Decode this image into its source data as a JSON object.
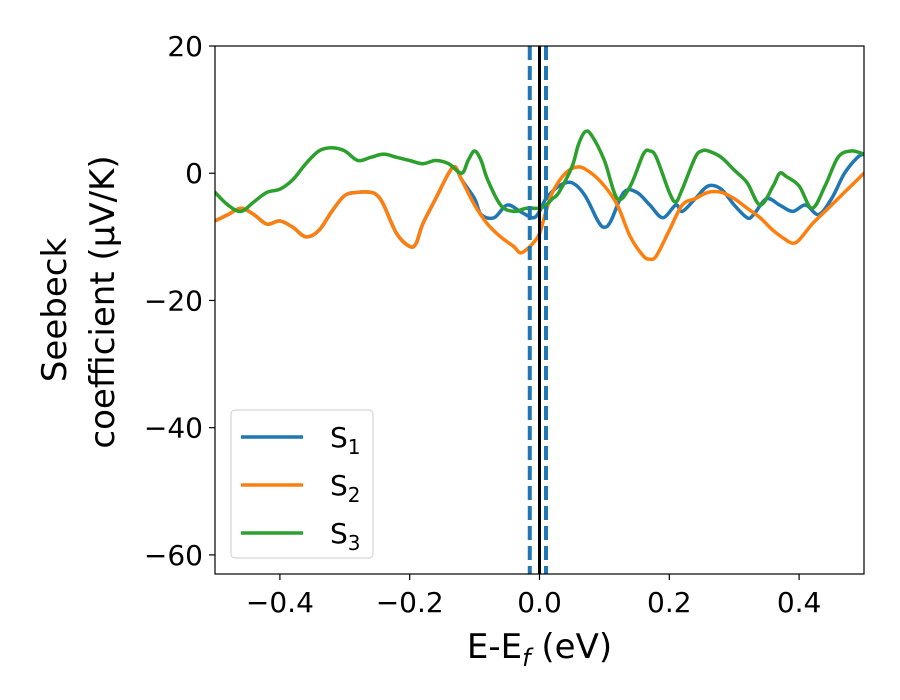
{
  "chart_data": {
    "type": "line",
    "xlabel": {
      "main": "E-E",
      "sub": "f",
      "unit": " (eV)"
    },
    "ylabel": {
      "line1": "Seebeck",
      "line2": "coefficient  (μV/K)"
    },
    "xlim": [
      -0.5,
      0.5
    ],
    "ylim": [
      -63,
      20
    ],
    "xticks": [
      {
        "value": -0.4,
        "label": "−0.4"
      },
      {
        "value": -0.2,
        "label": "−0.2"
      },
      {
        "value": 0.0,
        "label": "0.0"
      },
      {
        "value": 0.2,
        "label": "0.2"
      },
      {
        "value": 0.4,
        "label": "0.4"
      }
    ],
    "yticks": [
      {
        "value": 20,
        "label": "20"
      },
      {
        "value": 0,
        "label": "0"
      },
      {
        "value": -20,
        "label": "−20"
      },
      {
        "value": -40,
        "label": "−40"
      },
      {
        "value": -60,
        "label": "−60"
      }
    ],
    "vlines": [
      {
        "x": 0.0,
        "color": "#000000",
        "style": "solid"
      },
      {
        "x": -0.015,
        "color": "#1f77b4",
        "style": "dashed"
      },
      {
        "x": 0.01,
        "color": "#1f77b4",
        "style": "dashed"
      }
    ],
    "series": [
      {
        "name": "S",
        "sub": "1",
        "color": "#1f77b4",
        "x": [
          -0.5,
          -0.48,
          -0.46,
          -0.44,
          -0.42,
          -0.4,
          -0.38,
          -0.36,
          -0.34,
          -0.32,
          -0.3,
          -0.28,
          -0.26,
          -0.25,
          -0.24,
          -0.22,
          -0.2,
          -0.19,
          -0.18,
          -0.16,
          -0.14,
          -0.13,
          -0.12,
          -0.1,
          -0.09,
          -0.07,
          -0.05,
          -0.03,
          -0.01,
          0.0,
          0.01,
          0.03,
          0.05,
          0.07,
          0.09,
          0.1,
          0.11,
          0.13,
          0.15,
          0.17,
          0.19,
          0.21,
          0.22,
          0.24,
          0.26,
          0.28,
          0.3,
          0.32,
          0.33,
          0.35,
          0.37,
          0.39,
          0.41,
          0.43,
          0.45,
          0.47,
          0.49,
          0.5
        ],
        "values": [
          -7.5,
          -6.5,
          -5.5,
          -6.5,
          -8,
          -7.5,
          -8.5,
          -10,
          -9,
          -6,
          -3.5,
          -3,
          -3,
          -3.5,
          -5,
          -9.5,
          -11.5,
          -11,
          -8,
          -4,
          0,
          1,
          -1,
          -4,
          -6.5,
          -7,
          -5,
          -6,
          -7,
          -6,
          -4,
          -2,
          -1.5,
          -3.5,
          -7.5,
          -8.5,
          -7.5,
          -3,
          -3,
          -5,
          -7,
          -5,
          -6,
          -4,
          -2,
          -2.5,
          -5,
          -7,
          -6.5,
          -4,
          -5,
          -6,
          -5,
          -6.5,
          -4,
          0,
          2.5,
          3
        ]
      },
      {
        "name": "S",
        "sub": "2",
        "color": "#ff7f0e",
        "x": [
          -0.5,
          -0.48,
          -0.46,
          -0.44,
          -0.42,
          -0.4,
          -0.38,
          -0.36,
          -0.34,
          -0.32,
          -0.3,
          -0.28,
          -0.26,
          -0.25,
          -0.24,
          -0.22,
          -0.2,
          -0.19,
          -0.18,
          -0.16,
          -0.14,
          -0.13,
          -0.12,
          -0.1,
          -0.08,
          -0.06,
          -0.04,
          -0.03,
          -0.02,
          -0.01,
          0.0,
          0.01,
          0.02,
          0.04,
          0.06,
          0.08,
          0.1,
          0.12,
          0.14,
          0.16,
          0.17,
          0.18,
          0.2,
          0.22,
          0.24,
          0.26,
          0.28,
          0.3,
          0.32,
          0.34,
          0.36,
          0.38,
          0.39,
          0.4,
          0.42,
          0.44,
          0.46,
          0.48,
          0.5
        ],
        "values": [
          -7.5,
          -6.5,
          -5.5,
          -6.5,
          -8,
          -7.5,
          -8.5,
          -10,
          -9,
          -6,
          -3.5,
          -3,
          -3,
          -3.5,
          -5,
          -9.5,
          -11.5,
          -11,
          -8,
          -4,
          0,
          1,
          -1,
          -5,
          -8,
          -10,
          -11.5,
          -12.5,
          -12,
          -11,
          -9.5,
          -6,
          -3,
          0,
          1,
          0,
          -2,
          -5,
          -10,
          -13,
          -13.5,
          -13,
          -9,
          -5,
          -4,
          -3,
          -3,
          -4,
          -5.5,
          -7,
          -9,
          -10.5,
          -11,
          -10.5,
          -8,
          -6,
          -4,
          -2,
          0
        ]
      },
      {
        "name": "S",
        "sub": "3",
        "color": "#2ca02c",
        "x": [
          -0.5,
          -0.48,
          -0.46,
          -0.44,
          -0.42,
          -0.4,
          -0.38,
          -0.36,
          -0.34,
          -0.32,
          -0.3,
          -0.28,
          -0.26,
          -0.24,
          -0.22,
          -0.2,
          -0.18,
          -0.16,
          -0.14,
          -0.12,
          -0.11,
          -0.1,
          -0.09,
          -0.08,
          -0.06,
          -0.04,
          -0.02,
          0.0,
          0.01,
          0.02,
          0.03,
          0.05,
          0.06,
          0.07,
          0.08,
          0.1,
          0.12,
          0.14,
          0.16,
          0.17,
          0.18,
          0.2,
          0.21,
          0.22,
          0.24,
          0.25,
          0.26,
          0.28,
          0.3,
          0.32,
          0.34,
          0.36,
          0.37,
          0.38,
          0.4,
          0.42,
          0.44,
          0.46,
          0.48,
          0.5
        ],
        "values": [
          -3,
          -5,
          -6,
          -4.5,
          -3,
          -2.5,
          -1,
          1.5,
          3.5,
          4,
          3.5,
          2,
          2.5,
          3,
          2.5,
          2,
          1.5,
          2,
          1.5,
          0,
          2,
          3.5,
          2,
          -1,
          -5,
          -6,
          -5.5,
          -5.5,
          -5,
          -4,
          -3,
          1,
          4.5,
          6.5,
          6,
          2,
          -4,
          -2,
          3,
          3.5,
          2.5,
          -3,
          -4.5,
          -2.5,
          2.5,
          3.5,
          3.5,
          2.5,
          0.5,
          -1.5,
          -5,
          -2,
          0,
          -0.5,
          -2,
          -5.5,
          -2,
          2.5,
          3.5,
          3
        ]
      }
    ],
    "legend": {
      "location": "lower left"
    }
  }
}
